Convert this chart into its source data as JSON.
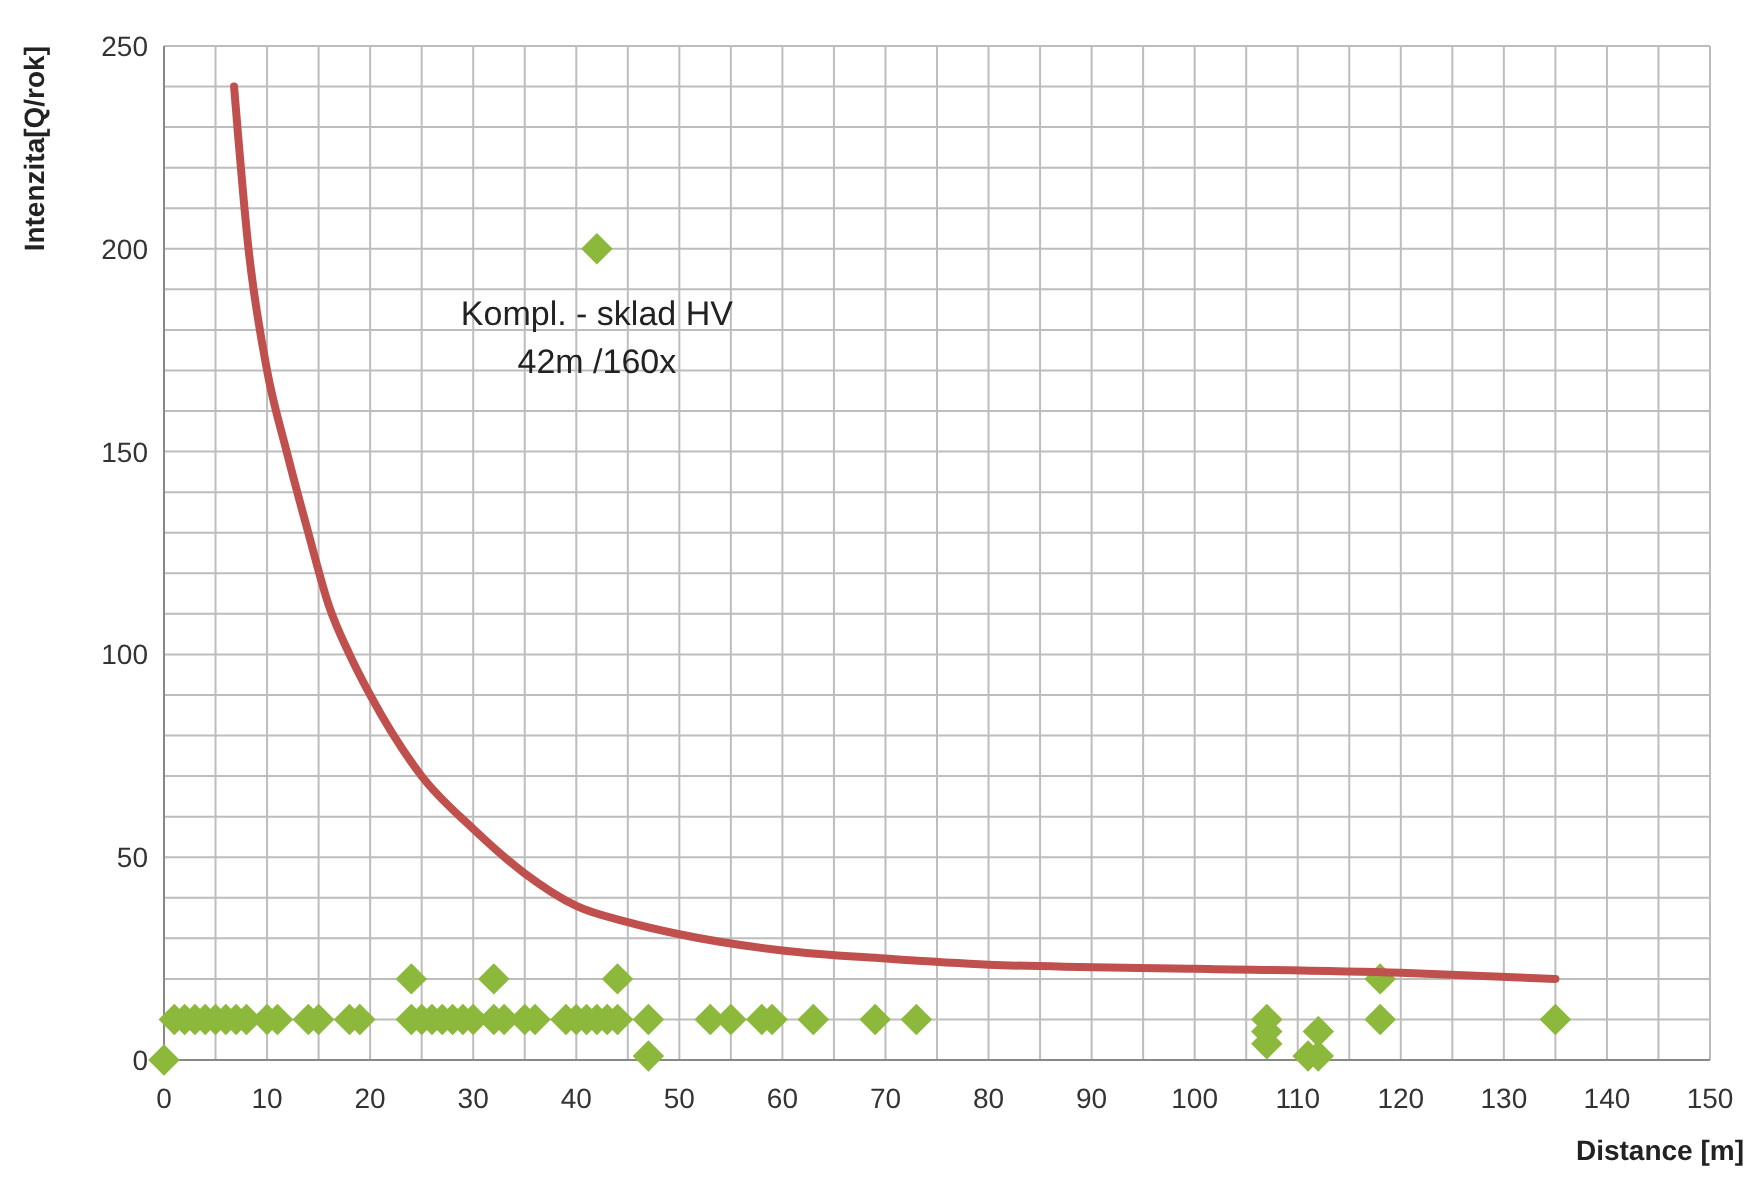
{
  "chart_data": {
    "type": "scatter",
    "xlabel": "Distance [m]",
    "ylabel": "Intenzita[Q/rok]",
    "xlim": [
      0,
      150
    ],
    "ylim": [
      0,
      250
    ],
    "xticks": [
      0,
      {
        "value": 5,
        "label": null
      },
      10,
      {
        "value": 15,
        "label": null
      },
      20,
      {
        "value": 25,
        "label": null
      },
      30,
      {
        "value": 35,
        "label": null
      },
      40,
      {
        "value": 45,
        "label": null
      },
      50,
      {
        "value": 55,
        "label": null
      },
      60,
      {
        "value": 65,
        "label": null
      },
      70,
      {
        "value": 75,
        "label": null
      },
      80,
      {
        "value": 85,
        "label": null
      },
      90,
      {
        "value": 95,
        "label": null
      },
      100,
      {
        "value": 105,
        "label": null
      },
      110,
      {
        "value": 115,
        "label": null
      },
      120,
      {
        "value": 125,
        "label": null
      },
      130,
      {
        "value": 135,
        "label": null
      },
      140,
      {
        "value": 145,
        "label": null
      },
      150
    ],
    "yticks": [
      0,
      {
        "value": 10,
        "label": null
      },
      {
        "value": 20,
        "label": null
      },
      {
        "value": 30,
        "label": null
      },
      {
        "value": 40,
        "label": null
      },
      50,
      {
        "value": 60,
        "label": null
      },
      {
        "value": 70,
        "label": null
      },
      {
        "value": 80,
        "label": null
      },
      {
        "value": 90,
        "label": null
      },
      100,
      {
        "value": 110,
        "label": null
      },
      {
        "value": 120,
        "label": null
      },
      {
        "value": 130,
        "label": null
      },
      {
        "value": 140,
        "label": null
      },
      150,
      {
        "value": 160,
        "label": null
      },
      {
        "value": 170,
        "label": null
      },
      {
        "value": 180,
        "label": null
      },
      {
        "value": 190,
        "label": null
      },
      200,
      {
        "value": 210,
        "label": null
      },
      {
        "value": 220,
        "label": null
      },
      {
        "value": 230,
        "label": null
      },
      {
        "value": 240,
        "label": null
      },
      250
    ],
    "grid": true,
    "series": [
      {
        "marker": "diamond",
        "color": "#8cb83c",
        "x": [
          0,
          1,
          2,
          3,
          4,
          5,
          6,
          7,
          8,
          10,
          11,
          14,
          15,
          18,
          19,
          24,
          25,
          26,
          27,
          28,
          29,
          30,
          32,
          33,
          35,
          36,
          39,
          40,
          41,
          42,
          43,
          44,
          47,
          53,
          55,
          58,
          59,
          63,
          69,
          73,
          24,
          32,
          44,
          47,
          42,
          107,
          107,
          107,
          111,
          112,
          112,
          118,
          118,
          135
        ],
        "values": [
          0,
          10,
          10,
          10,
          10,
          10,
          10,
          10,
          10,
          10,
          10,
          10,
          10,
          10,
          10,
          10,
          10,
          10,
          10,
          10,
          10,
          10,
          10,
          10,
          10,
          10,
          10,
          10,
          10,
          10,
          10,
          10,
          10,
          10,
          10,
          10,
          10,
          10,
          10,
          10,
          20,
          20,
          20,
          1,
          200,
          4,
          7,
          10,
          1,
          7,
          1,
          10,
          20,
          10
        ]
      },
      {
        "type": "line",
        "marker": "none",
        "line_style": "solid",
        "color": "#c0504d",
        "x": [
          6.8,
          8.2,
          10,
          11.9,
          14,
          16,
          18,
          20,
          25,
          30,
          35,
          40,
          45,
          50,
          60,
          70,
          80,
          100,
          120,
          135
        ],
        "values": [
          240,
          200,
          170,
          150,
          130,
          112,
          100,
          90,
          70,
          57,
          46,
          38,
          34,
          31,
          27,
          25,
          23.5,
          22.5,
          21.5,
          20
        ]
      }
    ],
    "annotations": [
      {
        "text": "Kompl. - sklad HV\n42m /160x",
        "x": 42,
        "y": 200
      }
    ]
  }
}
